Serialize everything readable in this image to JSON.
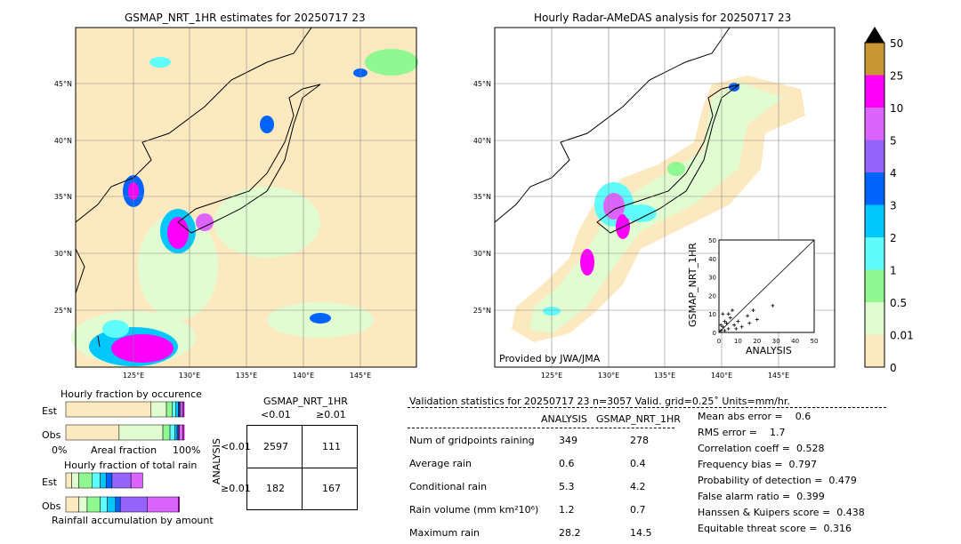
{
  "left_map": {
    "title": "GSMAP_NRT_1HR estimates for 20250717 23",
    "lon_ticks": [
      "125°E",
      "130°E",
      "135°E",
      "140°E",
      "145°E"
    ],
    "lat_ticks": [
      "45°N",
      "40°N",
      "35°N",
      "30°N",
      "25°N"
    ]
  },
  "right_map": {
    "title": "Hourly Radar-AMeDAS analysis for 20250717 23",
    "lon_ticks": [
      "125°E",
      "130°E",
      "135°E",
      "140°E",
      "145°E"
    ],
    "lat_ticks": [
      "45°N",
      "40°N",
      "35°N",
      "30°N",
      "25°N"
    ],
    "credit": "Provided by JWA/JMA"
  },
  "colorbar": {
    "levels": [
      "0",
      "0.01",
      "0.5",
      "1",
      "2",
      "3",
      "4",
      "5",
      "10",
      "25",
      "50"
    ],
    "colors": [
      "#fde9c0",
      "#e0fcd0",
      "#90f890",
      "#60fcfc",
      "#00c8fc",
      "#0064fc",
      "#9664fc",
      "#dc64fc",
      "#fc00fc",
      "#c89632"
    ],
    "extend_color": "#000000"
  },
  "chart_data": [
    {
      "type": "scatter",
      "xlabel": "ANALYSIS",
      "ylabel": "GSMAP_NRT_1HR",
      "xlim": [
        0,
        50
      ],
      "ylim": [
        0,
        50
      ],
      "ticks": [
        "0",
        "10",
        "20",
        "30",
        "40",
        "50"
      ],
      "points": [
        [
          1,
          1
        ],
        [
          2,
          3
        ],
        [
          3,
          1
        ],
        [
          4,
          5
        ],
        [
          5,
          2
        ],
        [
          6,
          8
        ],
        [
          8,
          4
        ],
        [
          10,
          6
        ],
        [
          12,
          3
        ],
        [
          15,
          9
        ],
        [
          18,
          12
        ],
        [
          20,
          7
        ],
        [
          28.2,
          14.5
        ],
        [
          2,
          10
        ],
        [
          7,
          12
        ],
        [
          16,
          5
        ],
        [
          3,
          6
        ],
        [
          9,
          2
        ],
        [
          1,
          4
        ],
        [
          5,
          10
        ]
      ]
    },
    {
      "type": "bar",
      "title": "Hourly fraction by occurence",
      "xlabel": "Areal fraction",
      "xticks": [
        "0%",
        "100%"
      ],
      "categories": [
        "Est",
        "Obs"
      ]
    },
    {
      "type": "bar",
      "title": "Hourly fraction of total rain",
      "xlabel": "Rainfall accumulation by amount",
      "categories": [
        "Est",
        "Obs"
      ]
    }
  ],
  "contingency": {
    "title": "GSMAP_NRT_1HR",
    "col_labels": [
      "<0.01",
      "≥0.01"
    ],
    "row_title": "ANALYSIS",
    "row_labels": [
      "<0.01",
      "≥0.01"
    ],
    "cells": [
      [
        "2597",
        "111"
      ],
      [
        "182",
        "167"
      ]
    ]
  },
  "stats": {
    "header": "Validation statistics for 20250717 23  n=3057 Valid. grid=0.25˚ Units=mm/hr.",
    "col_headers": [
      "ANALYSIS",
      "GSMAP_NRT_1HR"
    ],
    "rows": [
      {
        "label": "Num of gridpoints raining",
        "a": "349",
        "g": "278"
      },
      {
        "label": "Average rain",
        "a": "0.6",
        "g": "0.4"
      },
      {
        "label": "Conditional rain",
        "a": "5.3",
        "g": "4.2"
      },
      {
        "label": "Rain volume (mm km²10⁶)",
        "a": "1.2",
        "g": "0.7"
      },
      {
        "label": "Maximum rain",
        "a": "28.2",
        "g": "14.5"
      }
    ],
    "scores": [
      "Mean abs error =    0.6",
      "RMS error =    1.7",
      "Correlation coeff =  0.528",
      "Frequency bias =  0.797",
      "Probability of detection =  0.479",
      "False alarm ratio =  0.399",
      "Hanssen & Kuipers score =  0.438",
      "Equitable threat score =  0.316"
    ]
  }
}
